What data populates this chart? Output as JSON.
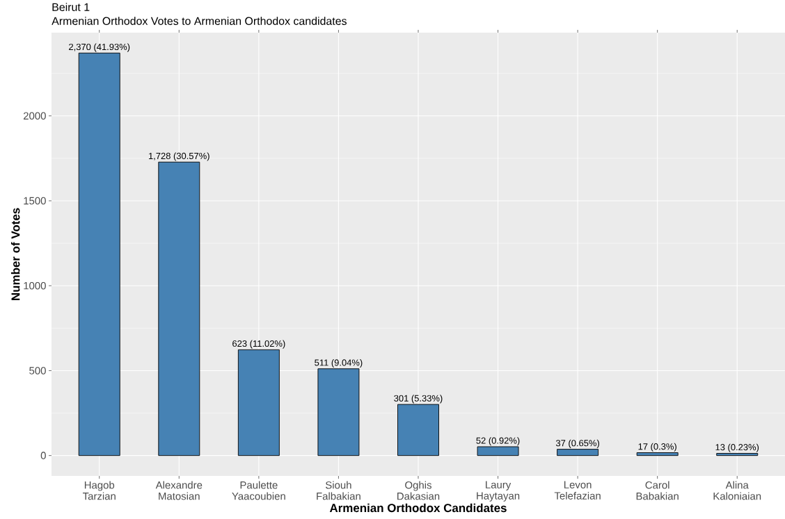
{
  "chart_data": {
    "type": "bar",
    "title": "Beirut 1",
    "subtitle": "Armenian Orthodox Votes to Armenian Orthodox candidates",
    "xlabel": "Armenian Orthodox Candidates",
    "ylabel": "Number of Votes",
    "categories": [
      "Hagob Tarzian",
      "Alexandre Matosian",
      "Paulette Yaacoubien",
      "Siouh Falbakian",
      "Oghis Dakasian",
      "Laury Haytayan",
      "Levon Telefazian",
      "Carol Babakian",
      "Alina Kaloniaian"
    ],
    "values": [
      2370,
      1728,
      623,
      511,
      301,
      52,
      37,
      17,
      13
    ],
    "value_labels": [
      "2,370 (41.93%)",
      "1,728 (30.57%)",
      "623 (11.02%)",
      "511 (9.04%)",
      "301 (5.33%)",
      "52 (0.92%)",
      "37 (0.65%)",
      "17 (0.3%)",
      "13 (0.23%)"
    ],
    "color": "#4682b4",
    "ylim": [
      -120,
      2490
    ],
    "yticks": [
      0,
      500,
      1000,
      1500,
      2000
    ],
    "grid": true
  }
}
